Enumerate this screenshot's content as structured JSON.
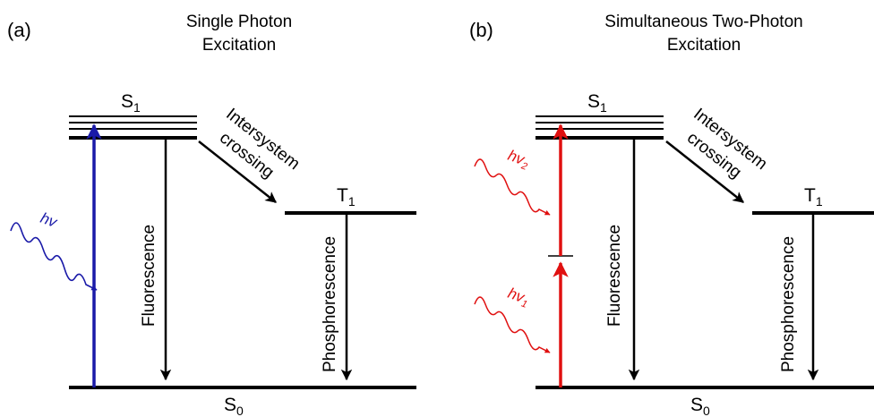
{
  "panels": [
    {
      "id": "a",
      "letter": "(a)",
      "title_line1": "Single Photon",
      "title_line2": "Excitation",
      "s1": {
        "main": "S",
        "sub": "1"
      },
      "t1": {
        "main": "T",
        "sub": "1"
      },
      "s0": {
        "main": "S",
        "sub": "0"
      },
      "isc_line1": "Intersystem",
      "isc_line2": "crossing",
      "fluorescence": "Fluorescence",
      "phosphorescence": "Phosphorescence",
      "photon": "hv"
    },
    {
      "id": "b",
      "letter": "(b)",
      "title_line1": "Simultaneous Two-Photon",
      "title_line2": "Excitation",
      "s1": {
        "main": "S",
        "sub": "1"
      },
      "t1": {
        "main": "T",
        "sub": "1"
      },
      "s0": {
        "main": "S",
        "sub": "0"
      },
      "isc_line1": "Intersystem",
      "isc_line2": "crossing",
      "fluorescence": "Fluorescence",
      "phosphorescence": "Phosphorescence",
      "photon1": {
        "main": "hv",
        "sub": "1"
      },
      "photon2": {
        "main": "hv",
        "sub": "2"
      }
    }
  ],
  "colors": {
    "excitation_a": "#1a1aa8",
    "excitation_b": "#e01010",
    "lines": "#000000"
  }
}
